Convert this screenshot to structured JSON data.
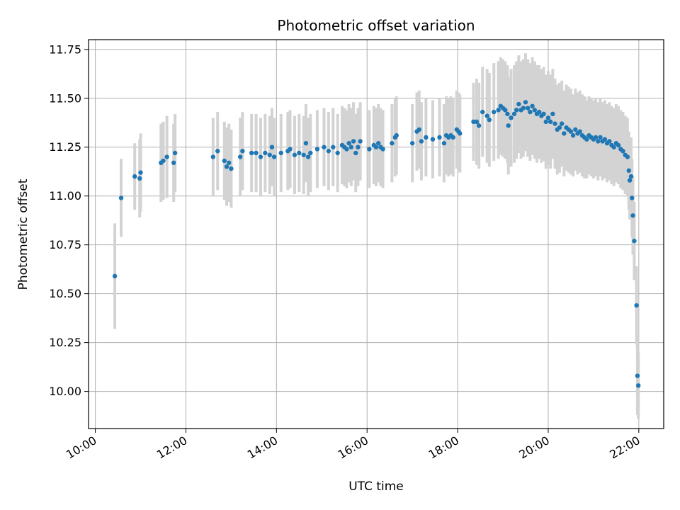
{
  "chart_data": {
    "type": "scatter",
    "title": "Photometric offset variation",
    "xlabel": "UTC time",
    "ylabel": "Photometric offset",
    "x_unit": "hours (UTC)",
    "xlim": [
      9.85,
      22.55
    ],
    "ylim": [
      9.81,
      11.8
    ],
    "x_ticks": [
      {
        "value": 10,
        "label": "10:00"
      },
      {
        "value": 12,
        "label": "12:00"
      },
      {
        "value": 14,
        "label": "14:00"
      },
      {
        "value": 16,
        "label": "16:00"
      },
      {
        "value": 18,
        "label": "18:00"
      },
      {
        "value": 20,
        "label": "20:00"
      },
      {
        "value": 22,
        "label": "22:00"
      }
    ],
    "y_ticks": [
      {
        "value": 10.0,
        "label": "10.00"
      },
      {
        "value": 10.25,
        "label": "10.25"
      },
      {
        "value": 10.5,
        "label": "10.50"
      },
      {
        "value": 10.75,
        "label": "10.75"
      },
      {
        "value": 11.0,
        "label": "11.00"
      },
      {
        "value": 11.25,
        "label": "11.25"
      },
      {
        "value": 11.5,
        "label": "11.50"
      },
      {
        "value": 11.75,
        "label": "11.75"
      }
    ],
    "grid": true,
    "point_color": "#1f77b4",
    "error_bar_color": "#d3d3d3",
    "series": [
      {
        "values": [
          [
            10.43,
            10.59,
            0.27
          ],
          [
            10.57,
            10.99,
            0.2
          ],
          [
            10.87,
            11.1,
            0.17
          ],
          [
            10.98,
            11.09,
            0.2
          ],
          [
            11.0,
            11.12,
            0.2
          ],
          [
            11.45,
            11.17,
            0.2
          ],
          [
            11.5,
            11.18,
            0.2
          ],
          [
            11.58,
            11.2,
            0.21
          ],
          [
            11.73,
            11.17,
            0.2
          ],
          [
            11.76,
            11.22,
            0.2
          ],
          [
            12.6,
            11.2,
            0.2
          ],
          [
            12.7,
            11.23,
            0.2
          ],
          [
            12.85,
            11.18,
            0.2
          ],
          [
            12.9,
            11.15,
            0.2
          ],
          [
            12.95,
            11.17,
            0.2
          ],
          [
            13.0,
            11.14,
            0.2
          ],
          [
            13.2,
            11.2,
            0.2
          ],
          [
            13.25,
            11.23,
            0.2
          ],
          [
            13.45,
            11.22,
            0.2
          ],
          [
            13.55,
            11.22,
            0.2
          ],
          [
            13.65,
            11.2,
            0.2
          ],
          [
            13.75,
            11.22,
            0.2
          ],
          [
            13.85,
            11.21,
            0.2
          ],
          [
            13.9,
            11.25,
            0.2
          ],
          [
            13.95,
            11.2,
            0.2
          ],
          [
            14.1,
            11.22,
            0.2
          ],
          [
            14.25,
            11.23,
            0.2
          ],
          [
            14.3,
            11.24,
            0.2
          ],
          [
            14.4,
            11.21,
            0.2
          ],
          [
            14.5,
            11.22,
            0.2
          ],
          [
            14.6,
            11.21,
            0.2
          ],
          [
            14.65,
            11.27,
            0.2
          ],
          [
            14.7,
            11.2,
            0.2
          ],
          [
            14.75,
            11.22,
            0.2
          ],
          [
            14.9,
            11.24,
            0.2
          ],
          [
            15.05,
            11.25,
            0.2
          ],
          [
            15.15,
            11.23,
            0.2
          ],
          [
            15.25,
            11.25,
            0.2
          ],
          [
            15.35,
            11.22,
            0.2
          ],
          [
            15.45,
            11.26,
            0.2
          ],
          [
            15.5,
            11.25,
            0.2
          ],
          [
            15.55,
            11.24,
            0.2
          ],
          [
            15.6,
            11.27,
            0.2
          ],
          [
            15.65,
            11.25,
            0.2
          ],
          [
            15.7,
            11.28,
            0.2
          ],
          [
            15.75,
            11.22,
            0.2
          ],
          [
            15.8,
            11.25,
            0.2
          ],
          [
            15.85,
            11.28,
            0.2
          ],
          [
            16.05,
            11.24,
            0.2
          ],
          [
            16.15,
            11.26,
            0.2
          ],
          [
            16.2,
            11.25,
            0.2
          ],
          [
            16.25,
            11.27,
            0.2
          ],
          [
            16.3,
            11.25,
            0.2
          ],
          [
            16.35,
            11.24,
            0.2
          ],
          [
            16.55,
            11.27,
            0.2
          ],
          [
            16.62,
            11.3,
            0.2
          ],
          [
            16.65,
            11.31,
            0.2
          ],
          [
            17.0,
            11.27,
            0.2
          ],
          [
            17.1,
            11.33,
            0.2
          ],
          [
            17.15,
            11.34,
            0.2
          ],
          [
            17.2,
            11.28,
            0.2
          ],
          [
            17.3,
            11.3,
            0.2
          ],
          [
            17.45,
            11.29,
            0.2
          ],
          [
            17.6,
            11.3,
            0.2
          ],
          [
            17.7,
            11.27,
            0.2
          ],
          [
            17.75,
            11.31,
            0.2
          ],
          [
            17.8,
            11.3,
            0.2
          ],
          [
            17.85,
            11.31,
            0.2
          ],
          [
            17.9,
            11.3,
            0.2
          ],
          [
            17.98,
            11.34,
            0.2
          ],
          [
            18.02,
            11.33,
            0.2
          ],
          [
            18.05,
            11.32,
            0.2
          ],
          [
            18.35,
            11.38,
            0.2
          ],
          [
            18.42,
            11.38,
            0.22
          ],
          [
            18.47,
            11.36,
            0.22
          ],
          [
            18.55,
            11.43,
            0.23
          ],
          [
            18.65,
            11.41,
            0.24
          ],
          [
            18.7,
            11.39,
            0.24
          ],
          [
            18.8,
            11.43,
            0.25
          ],
          [
            18.9,
            11.44,
            0.25
          ],
          [
            18.95,
            11.46,
            0.25
          ],
          [
            19.0,
            11.45,
            0.25
          ],
          [
            19.05,
            11.44,
            0.25
          ],
          [
            19.1,
            11.42,
            0.25
          ],
          [
            19.12,
            11.36,
            0.25
          ],
          [
            19.18,
            11.4,
            0.25
          ],
          [
            19.25,
            11.42,
            0.25
          ],
          [
            19.3,
            11.44,
            0.25
          ],
          [
            19.35,
            11.47,
            0.25
          ],
          [
            19.4,
            11.44,
            0.25
          ],
          [
            19.45,
            11.45,
            0.25
          ],
          [
            19.5,
            11.48,
            0.25
          ],
          [
            19.55,
            11.45,
            0.25
          ],
          [
            19.6,
            11.43,
            0.25
          ],
          [
            19.65,
            11.46,
            0.25
          ],
          [
            19.7,
            11.44,
            0.25
          ],
          [
            19.75,
            11.42,
            0.25
          ],
          [
            19.8,
            11.43,
            0.24
          ],
          [
            19.85,
            11.41,
            0.24
          ],
          [
            19.9,
            11.42,
            0.24
          ],
          [
            19.95,
            11.38,
            0.24
          ],
          [
            20.0,
            11.4,
            0.24
          ],
          [
            20.05,
            11.38,
            0.24
          ],
          [
            20.1,
            11.42,
            0.23
          ],
          [
            20.15,
            11.37,
            0.23
          ],
          [
            20.2,
            11.34,
            0.23
          ],
          [
            20.25,
            11.35,
            0.23
          ],
          [
            20.3,
            11.37,
            0.22
          ],
          [
            20.35,
            11.32,
            0.22
          ],
          [
            20.4,
            11.35,
            0.22
          ],
          [
            20.45,
            11.34,
            0.22
          ],
          [
            20.5,
            11.33,
            0.22
          ],
          [
            20.55,
            11.31,
            0.21
          ],
          [
            20.6,
            11.34,
            0.21
          ],
          [
            20.65,
            11.32,
            0.21
          ],
          [
            20.7,
            11.33,
            0.21
          ],
          [
            20.75,
            11.31,
            0.21
          ],
          [
            20.8,
            11.3,
            0.21
          ],
          [
            20.85,
            11.29,
            0.2
          ],
          [
            20.9,
            11.31,
            0.2
          ],
          [
            20.95,
            11.3,
            0.2
          ],
          [
            21.0,
            11.29,
            0.2
          ],
          [
            21.05,
            11.3,
            0.2
          ],
          [
            21.1,
            11.28,
            0.2
          ],
          [
            21.15,
            11.3,
            0.2
          ],
          [
            21.2,
            11.28,
            0.2
          ],
          [
            21.25,
            11.29,
            0.2
          ],
          [
            21.3,
            11.27,
            0.2
          ],
          [
            21.35,
            11.28,
            0.2
          ],
          [
            21.4,
            11.26,
            0.2
          ],
          [
            21.45,
            11.25,
            0.2
          ],
          [
            21.5,
            11.27,
            0.2
          ],
          [
            21.55,
            11.26,
            0.2
          ],
          [
            21.6,
            11.24,
            0.2
          ],
          [
            21.65,
            11.23,
            0.2
          ],
          [
            21.7,
            11.21,
            0.2
          ],
          [
            21.75,
            11.2,
            0.2
          ],
          [
            21.78,
            11.13,
            0.2
          ],
          [
            21.8,
            11.08,
            0.2
          ],
          [
            21.83,
            11.1,
            0.2
          ],
          [
            21.85,
            10.99,
            0.2
          ],
          [
            21.87,
            10.9,
            0.2
          ],
          [
            21.9,
            10.77,
            0.2
          ],
          [
            21.95,
            10.44,
            0.2
          ],
          [
            21.97,
            10.08,
            0.2
          ],
          [
            21.99,
            10.03,
            0.17
          ]
        ]
      }
    ]
  }
}
